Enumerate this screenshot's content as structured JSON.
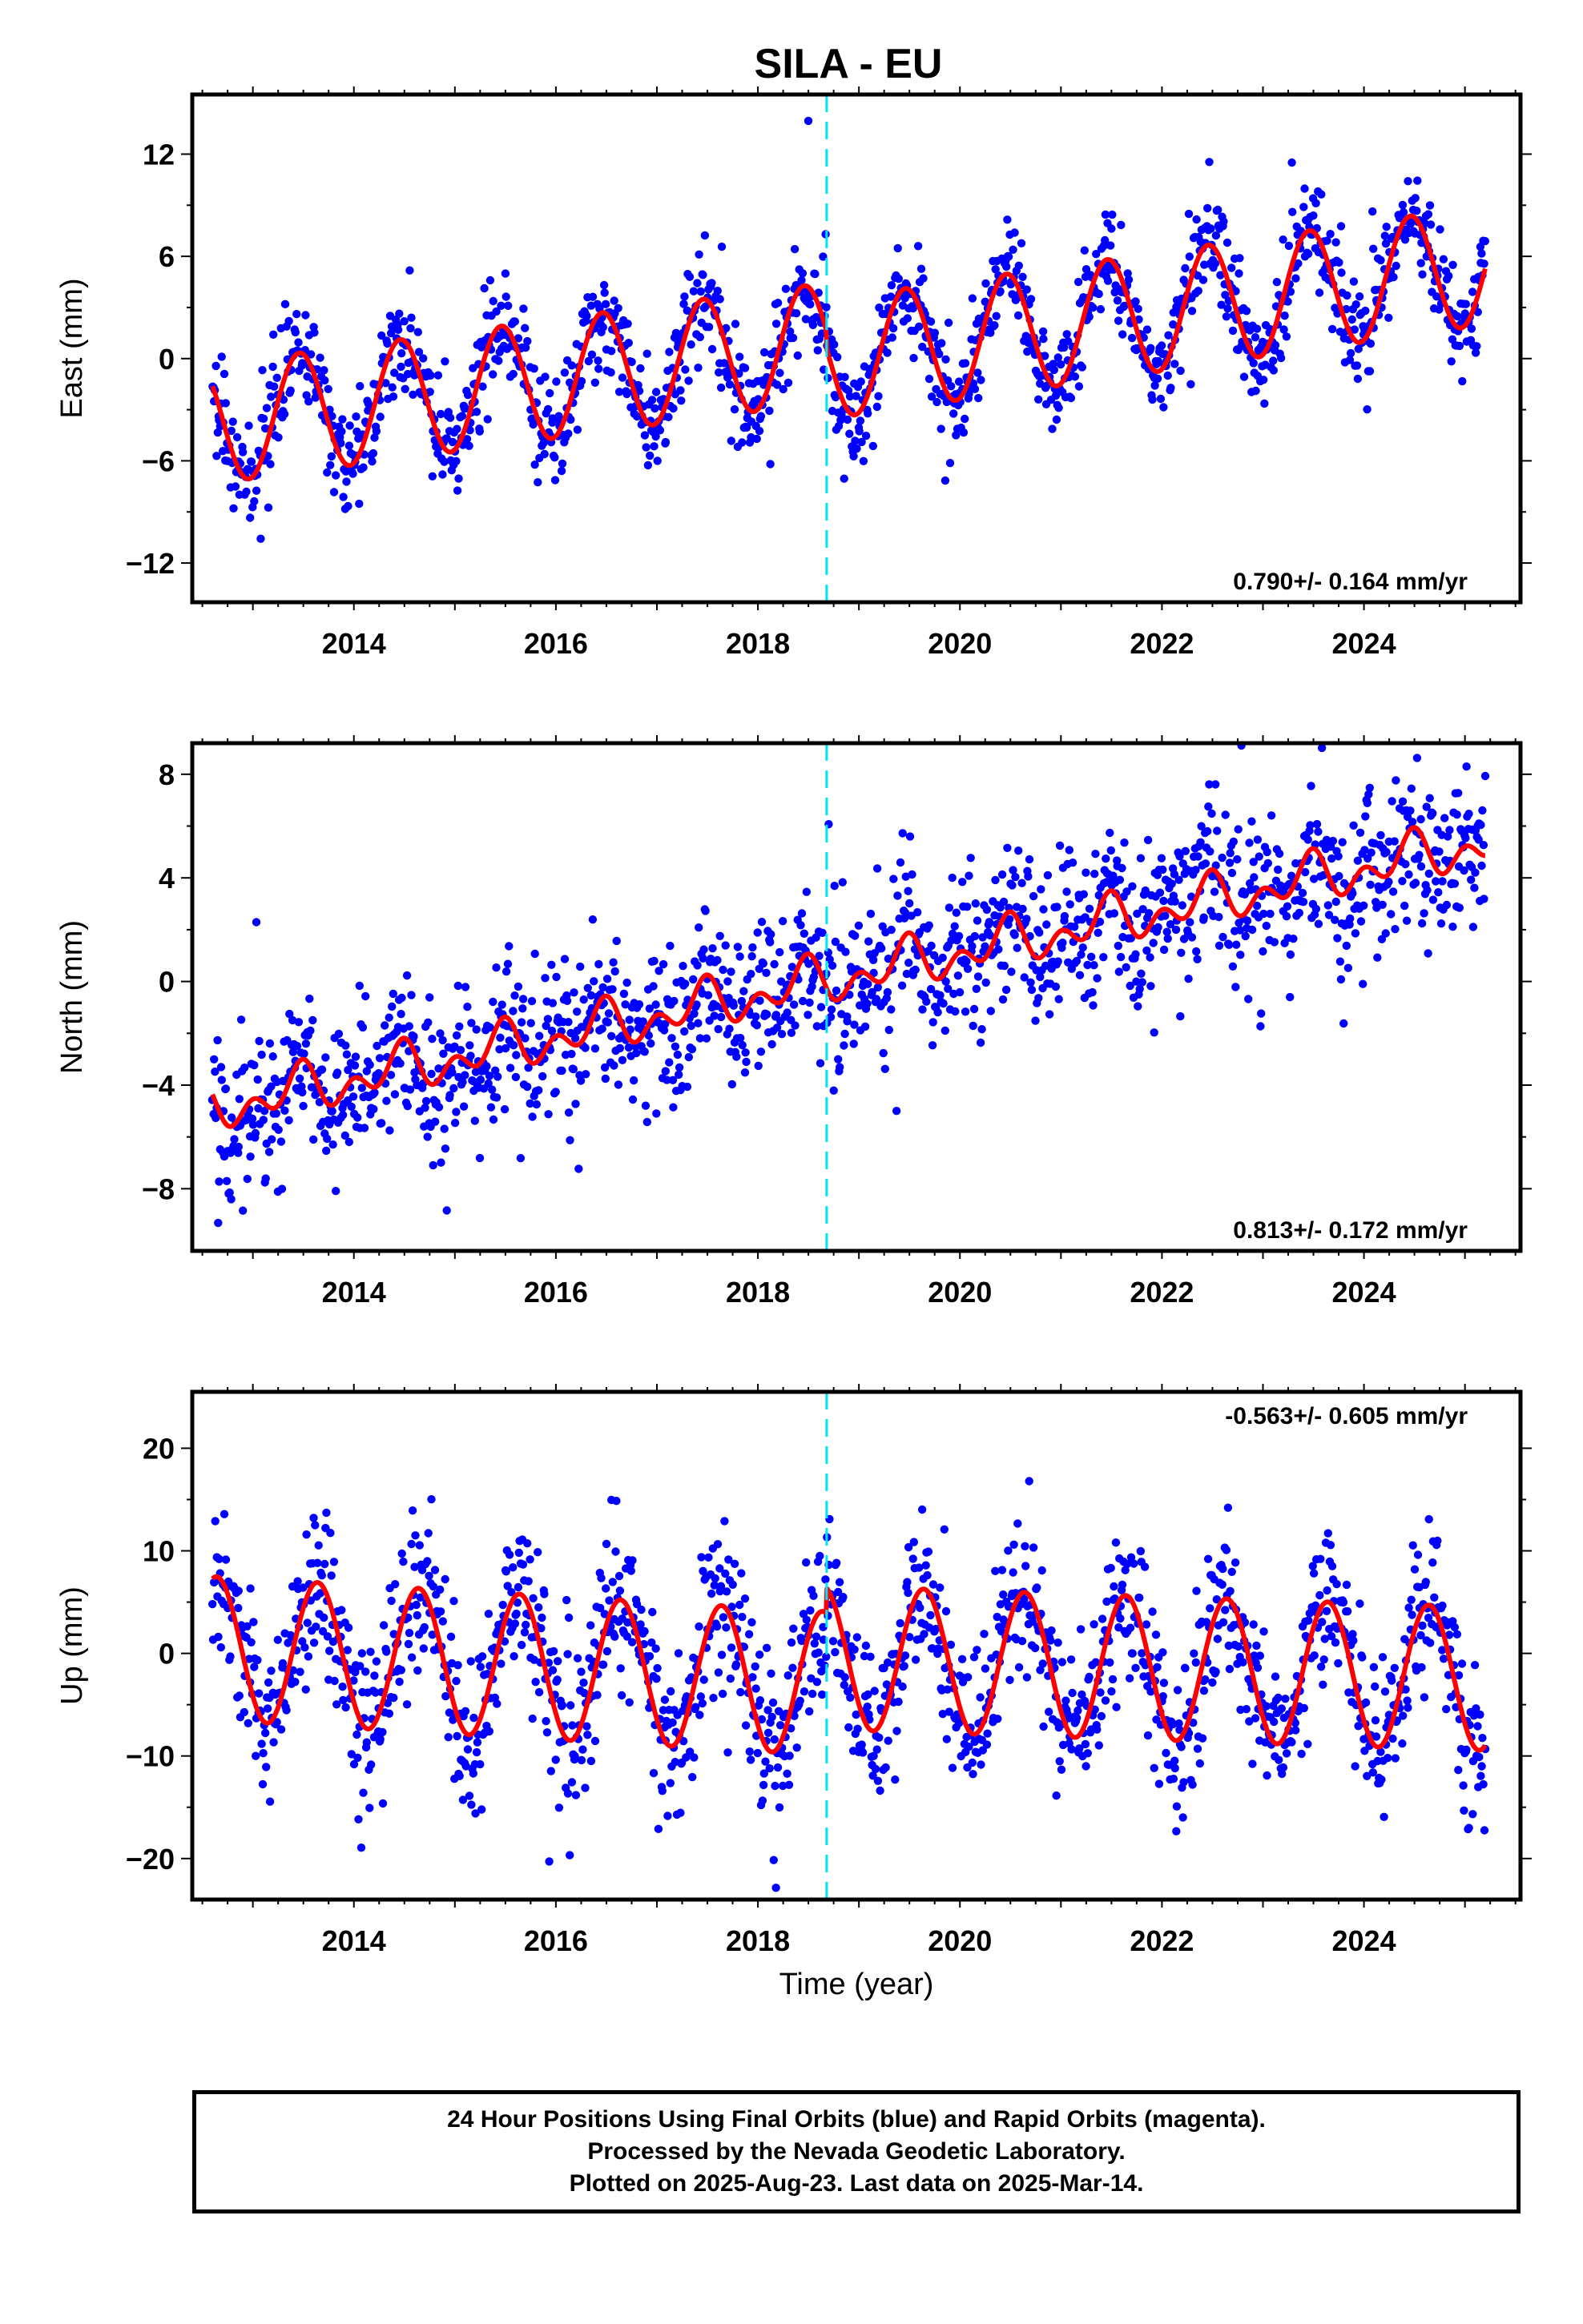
{
  "colors": {
    "final_orbits": "#0000ff",
    "model_fit": "#ff0000",
    "equipment_change": "#00e5ff",
    "frame": "#000000",
    "background": "#ffffff"
  },
  "figure": {
    "title": "SILA - EU",
    "footer": {
      "line1": "24 Hour Positions Using Final Orbits (blue) and Rapid Orbits (magenta).",
      "line2": "Processed by the Nevada Geodetic Laboratory.",
      "line3": "Plotted on 2025-Aug-23. Last data on 2025-Mar-14."
    }
  },
  "chart_data": [
    {
      "type": "scatter",
      "component": "east",
      "title": "SILA - EU",
      "xlabel": "",
      "ylabel": "East (mm)",
      "xlim": [
        2012.4,
        2025.55
      ],
      "ylim": [
        -14.3,
        15.5
      ],
      "x_ticks": [
        2014,
        2016,
        2018,
        2020,
        2022,
        2024
      ],
      "y_ticks": [
        -12,
        -6,
        0,
        6,
        12
      ],
      "grid": false,
      "rate_label": "0.790+/- 0.164 mm/yr",
      "rate_position": "bottom-right",
      "data_span": [
        2012.6,
        2025.2
      ],
      "equipment_change_year": 2018.68,
      "fit": {
        "offset": -3.85,
        "trend_mm_per_yr": 0.79,
        "trend_ref_year": 2012.6,
        "annual_amp": 3.5,
        "annual_phase_year_frac": 0.46,
        "step_at_break": -1.0,
        "post_break_extra_trend": 0.06
      },
      "scatter_sigma": 1.5,
      "point_count": 1500
    },
    {
      "type": "scatter",
      "component": "north",
      "title": "",
      "xlabel": "",
      "ylabel": "North (mm)",
      "xlim": [
        2012.4,
        2025.55
      ],
      "ylim": [
        -10.4,
        9.2
      ],
      "x_ticks": [
        2014,
        2016,
        2018,
        2020,
        2022,
        2024
      ],
      "y_ticks": [
        -8,
        -4,
        0,
        4,
        8
      ],
      "grid": false,
      "rate_label": "0.813+/- 0.172 mm/yr",
      "rate_position": "bottom-right",
      "data_span": [
        2012.6,
        2025.2
      ],
      "equipment_change_year": 2018.68,
      "fit": {
        "offset": -4.9,
        "trend_mm_per_yr": 0.813,
        "trend_ref_year": 2012.6,
        "annual_amp": 0.6,
        "annual_phase_year_frac": 0.45,
        "semiannual_amp": 0.6,
        "semiannual_phase_year_frac": 0.0
      },
      "scatter_sigma": 1.5,
      "point_count": 1500
    },
    {
      "type": "scatter",
      "component": "up",
      "title": "",
      "xlabel": "Time (year)",
      "ylabel": "Up (mm)",
      "xlim": [
        2012.4,
        2025.55
      ],
      "ylim": [
        -24,
        25.5
      ],
      "x_ticks": [
        2014,
        2016,
        2018,
        2020,
        2022,
        2024
      ],
      "y_ticks": [
        -20,
        -10,
        0,
        10,
        20
      ],
      "grid": false,
      "rate_label": "-0.563+/- 0.605 mm/yr",
      "rate_position": "top-right",
      "data_span": [
        2012.6,
        2025.2
      ],
      "equipment_change_year": 2018.68,
      "fit": {
        "offset": 0.5,
        "trend_mm_per_yr": -0.563,
        "trend_ref_year": 2012.6,
        "annual_amp": 7.0,
        "annual_phase_year_frac": 0.64,
        "step_at_break": 2.5,
        "post_break_extra_trend": 0.25
      },
      "scatter_sigma": 4.0,
      "point_count": 1500
    }
  ]
}
